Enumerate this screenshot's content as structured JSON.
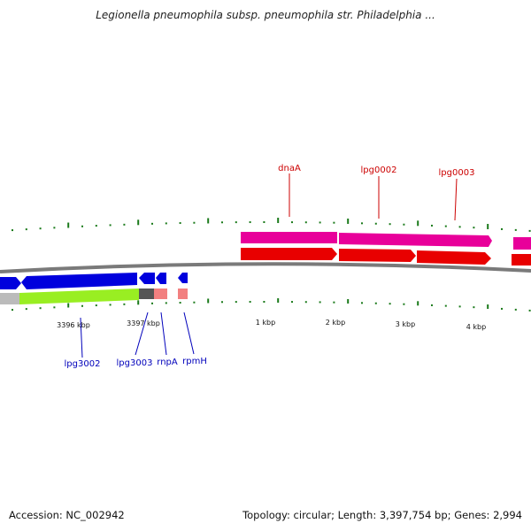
{
  "title": "Legionella pneumophila subsp. pneumophila str. Philadelphia ...",
  "footer": {
    "accession_label": "Accession:",
    "accession": "NC_002942",
    "topology_label": "Topology:",
    "topology": "circular",
    "length_label": "Length:",
    "length": "3,397,754 bp",
    "genes_label": "Genes:",
    "genes": "2,994"
  },
  "colors": {
    "backbone": "#888888",
    "forward_gene": "#e8009a",
    "forward_cds": "#e80000",
    "reverse_gene": "#0000dd",
    "reverse_cds_green": "#99ee22",
    "reverse_cds_gray": "#555555",
    "reverse_cds_pink": "#f28080",
    "tick": "#1a7a1a",
    "forward_label": "#cc0000",
    "reverse_label": "#0000bb"
  },
  "scale_labels": [
    "3396 kbp",
    "3397 kbp",
    "1 kbp",
    "2 kbp",
    "3 kbp",
    "4 kbp"
  ],
  "forward_genes": [
    {
      "name": "dnaA",
      "label": true
    },
    {
      "name": "lpg0002",
      "label": true
    },
    {
      "name": "lpg0003",
      "label": true
    },
    {
      "name": "",
      "label": false
    }
  ],
  "reverse_genes": [
    {
      "name": "",
      "label": false
    },
    {
      "name": "lpg3002",
      "label": true
    },
    {
      "name": "lpg3003",
      "label": true
    },
    {
      "name": "rnpA",
      "label": true
    },
    {
      "name": "rpmH",
      "label": true
    }
  ]
}
